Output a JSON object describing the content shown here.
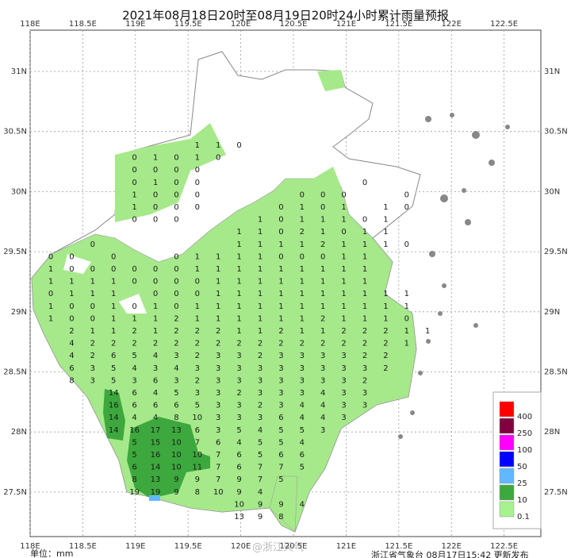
{
  "title": "2021年08月18日20时至08月19日20时24小时累计雨量预报",
  "map": {
    "xticks": [
      {
        "value": 118,
        "label": "118E"
      },
      {
        "value": 118.5,
        "label": "118.5E"
      },
      {
        "value": 119,
        "label": "119E"
      },
      {
        "value": 119.5,
        "label": "119.5E"
      },
      {
        "value": 120,
        "label": "120E"
      },
      {
        "value": 120.5,
        "label": "120.5E"
      },
      {
        "value": 121,
        "label": "121E"
      },
      {
        "value": 121.5,
        "label": "121.5E"
      },
      {
        "value": 122,
        "label": "122E"
      },
      {
        "value": 122.5,
        "label": "122.5E"
      }
    ],
    "yticks": [
      {
        "value": 31,
        "label": "31N"
      },
      {
        "value": 30.5,
        "label": "30.5N"
      },
      {
        "value": 30,
        "label": "30N"
      },
      {
        "value": 29.5,
        "label": "29.5N"
      },
      {
        "value": 29,
        "label": "29N"
      },
      {
        "value": 28.5,
        "label": "28.5N"
      },
      {
        "value": 28,
        "label": "28N"
      },
      {
        "value": 27.5,
        "label": "27.5N"
      }
    ],
    "station_rows": [
      [
        1,
        1,
        0
      ],
      [
        0,
        1,
        0,
        1,
        0
      ],
      [
        0,
        0,
        0,
        0
      ],
      [
        0,
        1,
        0,
        0,
        null,
        null,
        null,
        null,
        null,
        null,
        null,
        0
      ],
      [
        1,
        0,
        0,
        0,
        null,
        null,
        null,
        null,
        0,
        0,
        0,
        null,
        null,
        0
      ],
      [
        1,
        0,
        0,
        0,
        null,
        null,
        null,
        0,
        1,
        0,
        1,
        null,
        1,
        0
      ],
      [
        0,
        0,
        0,
        null,
        null,
        null,
        1,
        0,
        1,
        1,
        1,
        0,
        1
      ],
      [
        1,
        1,
        0,
        2,
        1,
        0,
        1,
        1
      ],
      [
        0,
        null,
        null,
        null,
        null,
        null,
        null,
        1,
        1,
        1,
        1,
        2,
        1,
        1,
        1,
        0
      ],
      [
        0,
        0,
        null,
        0,
        null,
        null,
        0,
        1,
        1,
        1,
        1,
        0,
        0,
        0,
        1,
        1
      ],
      [
        1,
        0,
        0,
        0,
        0,
        0,
        0,
        1,
        1,
        1,
        1,
        1,
        1,
        1,
        1,
        1
      ],
      [
        1,
        1,
        1,
        1,
        0,
        0,
        0,
        0,
        1,
        1,
        1,
        1,
        1,
        1,
        1,
        1
      ],
      [
        0,
        1,
        1,
        1,
        null,
        0,
        0,
        0,
        1,
        1,
        1,
        1,
        1,
        1,
        1,
        1,
        1,
        1
      ],
      [
        1,
        0,
        0,
        1,
        0,
        1,
        0,
        1,
        1,
        1,
        1,
        1,
        1,
        1,
        1,
        1,
        1,
        1
      ],
      [
        1,
        0,
        0,
        1,
        1,
        1,
        2,
        1,
        1,
        1,
        1,
        1,
        1,
        2,
        1,
        1,
        1,
        0
      ],
      [
        2,
        1,
        1,
        2,
        1,
        2,
        2,
        2,
        1,
        1,
        2,
        1,
        1,
        2,
        2,
        2,
        1,
        1
      ],
      [
        4,
        2,
        2,
        2,
        2,
        2,
        2,
        2,
        2,
        2,
        2,
        2,
        2,
        2,
        2,
        2,
        1
      ],
      [
        4,
        2,
        6,
        5,
        4,
        3,
        2,
        3,
        3,
        2,
        3,
        3,
        3,
        3,
        2,
        2
      ],
      [
        6,
        3,
        5,
        4,
        3,
        4,
        3,
        3,
        3,
        3,
        3,
        3,
        3,
        3,
        3,
        2
      ],
      [
        8,
        3,
        5,
        3,
        6,
        3,
        2,
        3,
        3,
        3,
        3,
        3,
        3,
        3,
        2
      ],
      [
        14,
        6,
        4,
        5,
        3,
        3,
        2,
        3,
        3,
        3,
        4,
        3,
        3
      ],
      [
        16,
        6,
        6,
        6,
        5,
        3,
        3,
        2,
        3,
        4,
        4,
        3,
        3
      ],
      [
        14,
        4,
        4,
        8,
        10,
        3,
        3,
        3,
        6,
        4,
        4,
        3
      ],
      [
        14,
        16,
        17,
        13,
        6,
        3,
        5,
        4,
        5,
        5,
        3
      ],
      [
        5,
        15,
        10,
        7,
        6,
        4,
        5,
        5,
        4
      ],
      [
        5,
        16,
        10,
        10,
        7,
        6,
        5,
        6,
        6
      ],
      [
        6,
        14,
        10,
        11,
        7,
        6,
        7,
        7,
        5
      ],
      [
        8,
        13,
        9,
        9,
        7,
        9,
        7,
        5
      ],
      [
        19,
        19,
        9,
        8,
        10,
        9,
        4
      ],
      [
        10,
        9,
        9,
        4
      ],
      [
        13,
        9,
        8
      ]
    ]
  },
  "legend": {
    "levels": [
      {
        "label": "400",
        "color": "#ff0000"
      },
      {
        "label": "250",
        "color": "#800040"
      },
      {
        "label": "100",
        "color": "#ff00ff"
      },
      {
        "label": "50",
        "color": "#0000ff"
      },
      {
        "label": "25",
        "color": "#61b8ff"
      },
      {
        "label": "10",
        "color": "#3da83d"
      },
      {
        "label": "0.1",
        "color": "#a6f28f"
      }
    ]
  },
  "footer": {
    "unit": "单位：mm",
    "issuer": "浙江省气象台 08月17日15:42 更新发布",
    "watermark": "@浙江天气"
  }
}
